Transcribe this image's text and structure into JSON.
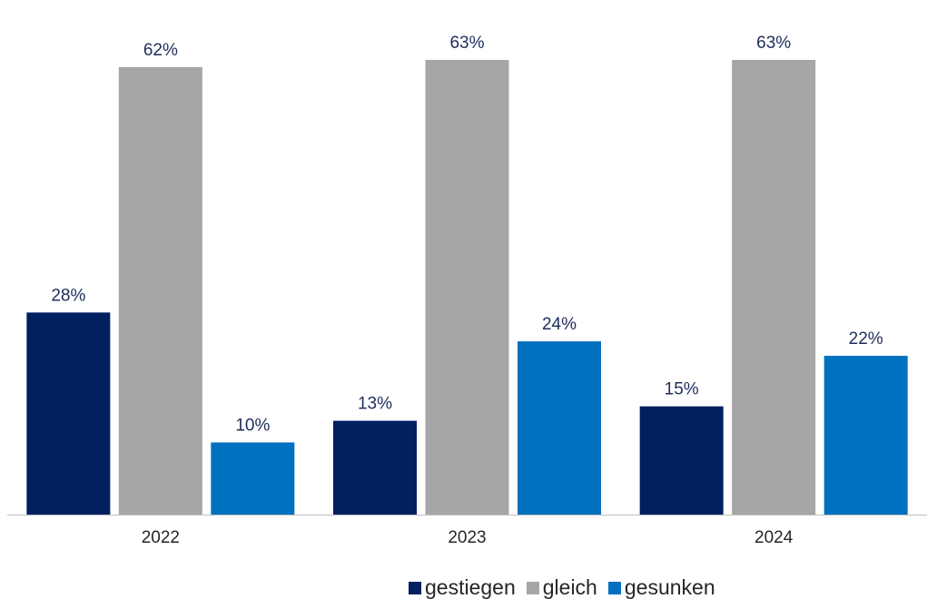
{
  "chart_data": {
    "type": "bar",
    "categories": [
      "2022",
      "2023",
      "2024"
    ],
    "series": [
      {
        "name": "gestiegen",
        "values": [
          28,
          13,
          15
        ],
        "labels": [
          "28%",
          "13%",
          "15%"
        ],
        "color": "#002060"
      },
      {
        "name": "gleich",
        "values": [
          62,
          63,
          63
        ],
        "labels": [
          "62%",
          "63%",
          "63%"
        ],
        "color": "#a6a6a6"
      },
      {
        "name": "gesunken",
        "values": [
          10,
          24,
          22
        ],
        "labels": [
          "10%",
          "24%",
          "22%"
        ],
        "color": "#0070c0"
      }
    ],
    "unit": "%",
    "ylim": [
      0,
      63
    ],
    "grid": false,
    "legend_position": "bottom",
    "title": "",
    "xlabel": "",
    "ylabel": ""
  }
}
